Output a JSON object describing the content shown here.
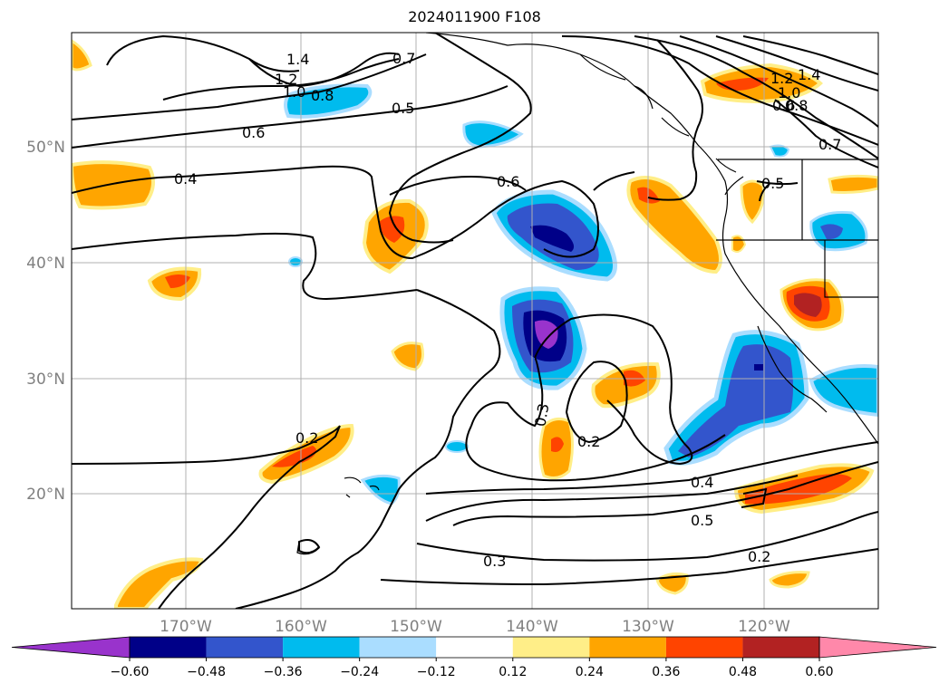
{
  "title": "2024011900 F108",
  "lat_labels": [
    "50°N",
    "40°N",
    "30°N",
    "20°N"
  ],
  "lon_labels": [
    "170°W",
    "160°W",
    "150°W",
    "140°W",
    "130°W",
    "120°W"
  ],
  "contour_labels": [
    "1.4",
    "1.2",
    "1.0",
    "0.8",
    "0.7",
    "0.5",
    "0.6",
    "0.4",
    "0.6",
    "0.5",
    "0.3",
    "0.2",
    "0.2",
    "0.4",
    "0.5",
    "0.3",
    "0.2",
    "1.4",
    "1.2",
    "1.0",
    "0.8",
    "0.6",
    "0.7"
  ],
  "colorbar": {
    "ticks": [
      "−0.60",
      "−0.48",
      "−0.36",
      "−0.24",
      "−0.12",
      "0.12",
      "0.24",
      "0.36",
      "0.48",
      "0.60"
    ],
    "colors": [
      "#9933cc",
      "#000088",
      "#3355cc",
      "#00bbee",
      "#aaddff",
      "#ffffff",
      "#ffee88",
      "#ffa500",
      "#ff4400",
      "#b22222",
      "#ff88aa"
    ]
  }
}
